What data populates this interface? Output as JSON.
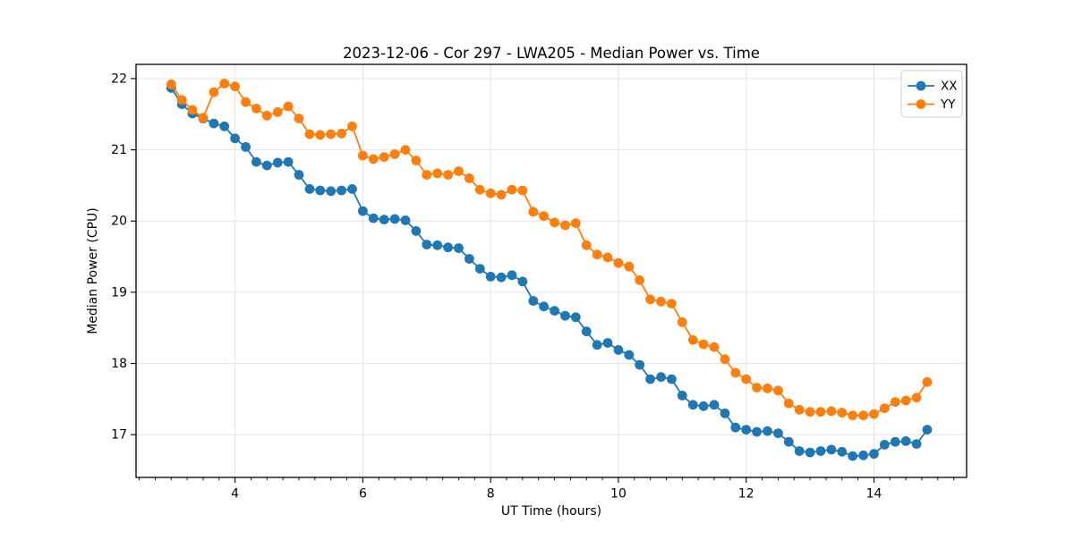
{
  "figure": {
    "background": "#ffffff",
    "plot_border_color": "#000000",
    "grid_color": "#e4e4e4"
  },
  "chart_data": {
    "type": "line",
    "title": "2023-12-06 - Cor 297 - LWA205 - Median Power vs. Time",
    "xlabel": "UT Time (hours)",
    "ylabel": "Median Power (CPU)",
    "xlim": [
      2.45,
      15.45
    ],
    "ylim": [
      16.4,
      22.2
    ],
    "x_major_ticks": [
      4,
      6,
      8,
      10,
      12,
      14
    ],
    "x_minor_tick_step": 0.25,
    "y_major_ticks": [
      17,
      18,
      19,
      20,
      21,
      22
    ],
    "grid": true,
    "legend_position": "upper right",
    "marker": "circle",
    "x": [
      3.0,
      3.167,
      3.333,
      3.5,
      3.667,
      3.833,
      4.0,
      4.167,
      4.333,
      4.5,
      4.667,
      4.833,
      5.0,
      5.167,
      5.333,
      5.5,
      5.667,
      5.833,
      6.0,
      6.167,
      6.333,
      6.5,
      6.667,
      6.833,
      7.0,
      7.167,
      7.333,
      7.5,
      7.667,
      7.833,
      8.0,
      8.167,
      8.333,
      8.5,
      8.667,
      8.833,
      9.0,
      9.167,
      9.333,
      9.5,
      9.667,
      9.833,
      10.0,
      10.167,
      10.333,
      10.5,
      10.667,
      10.833,
      11.0,
      11.167,
      11.333,
      11.5,
      11.667,
      11.833,
      12.0,
      12.167,
      12.333,
      12.5,
      12.667,
      12.833,
      13.0,
      13.167,
      13.333,
      13.5,
      13.667,
      13.833,
      14.0,
      14.167,
      14.333,
      14.5,
      14.667,
      14.833
    ],
    "series": [
      {
        "name": "XX",
        "color": "#1f77b4",
        "values": [
          21.87,
          21.64,
          21.51,
          21.44,
          21.37,
          21.33,
          21.16,
          21.04,
          20.83,
          20.78,
          20.82,
          20.83,
          20.65,
          20.45,
          20.43,
          20.42,
          20.43,
          20.45,
          20.14,
          20.04,
          20.02,
          20.03,
          20.01,
          19.86,
          19.67,
          19.66,
          19.63,
          19.62,
          19.47,
          19.33,
          19.22,
          19.21,
          19.24,
          19.15,
          18.88,
          18.8,
          18.74,
          18.67,
          18.65,
          18.45,
          18.26,
          18.29,
          18.19,
          18.12,
          17.98,
          17.78,
          17.81,
          17.78,
          17.55,
          17.42,
          17.4,
          17.42,
          17.3,
          17.1,
          17.07,
          17.04,
          17.05,
          17.02,
          16.9,
          16.77,
          16.75,
          16.77,
          16.79,
          16.76,
          16.7,
          16.71,
          16.73,
          16.86,
          16.9,
          16.91,
          16.87,
          17.07
        ]
      },
      {
        "name": "YY",
        "color": "#ff7f0e",
        "values": [
          21.92,
          21.7,
          21.56,
          21.45,
          21.81,
          21.93,
          21.89,
          21.67,
          21.58,
          21.48,
          21.53,
          21.61,
          21.44,
          21.22,
          21.21,
          21.22,
          21.23,
          21.33,
          20.92,
          20.87,
          20.9,
          20.94,
          21.0,
          20.85,
          20.65,
          20.67,
          20.65,
          20.7,
          20.6,
          20.44,
          20.39,
          20.37,
          20.44,
          20.43,
          20.13,
          20.07,
          19.98,
          19.94,
          19.97,
          19.66,
          19.53,
          19.49,
          19.41,
          19.36,
          19.17,
          18.9,
          18.87,
          18.84,
          18.58,
          18.33,
          18.27,
          18.23,
          18.06,
          17.87,
          17.78,
          17.66,
          17.65,
          17.62,
          17.44,
          17.35,
          17.32,
          17.32,
          17.33,
          17.31,
          17.27,
          17.27,
          17.29,
          17.37,
          17.46,
          17.48,
          17.52,
          17.74
        ]
      }
    ]
  }
}
